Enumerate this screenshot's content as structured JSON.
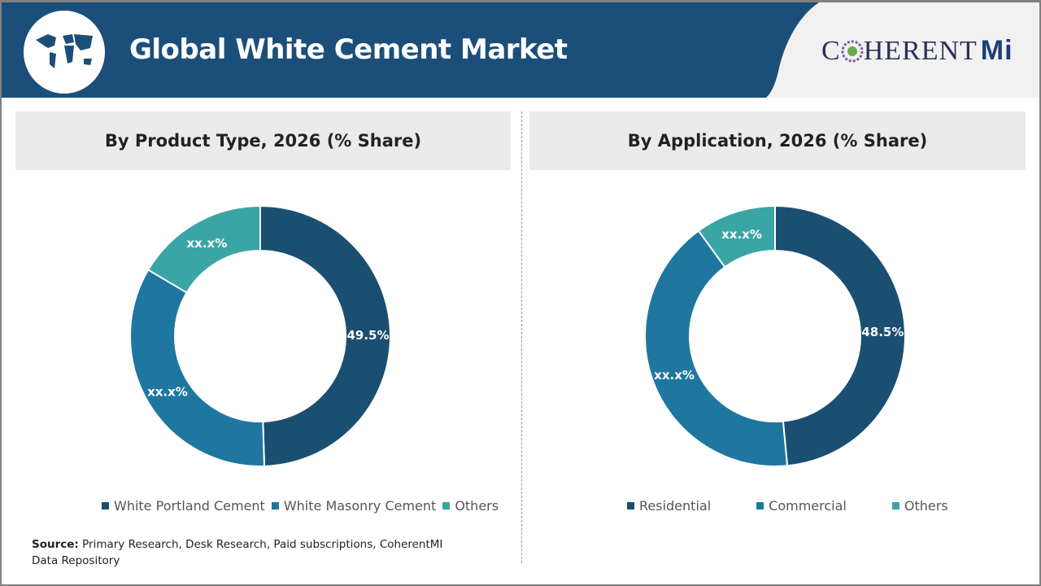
{
  "header": {
    "title": "Global White Cement Market",
    "logo_text": "COHERENTMI",
    "logo_main": "C",
    "logo_rest": "HERENT",
    "logo_mi": "Mi"
  },
  "colors": {
    "header": "#1b4f79",
    "dark": "#1b4f72",
    "medium": "#1f77a0",
    "teal": "#3aa5a5"
  },
  "chart_data": [
    {
      "type": "pie",
      "donut": true,
      "title": "By Product Type, 2026 (% Share)",
      "categories": [
        "White Portland Cement",
        "White Masonry Cement",
        "Others"
      ],
      "values": [
        49.5,
        34.0,
        16.5
      ],
      "labels": [
        "49.5%",
        "xx.x%",
        "xx.x%"
      ],
      "legend": "bottom"
    },
    {
      "type": "pie",
      "donut": true,
      "title": "By Application, 2026 (% Share)",
      "categories": [
        "Residential",
        "Commercial",
        "Others"
      ],
      "values": [
        48.5,
        41.5,
        10.0
      ],
      "labels": [
        "48.5%",
        "xx.x%",
        "xx.x%"
      ],
      "legend": "bottom"
    }
  ],
  "source": {
    "label": "Source:",
    "text": " Primary Research, Desk Research, Paid subscriptions, CoherentMI Data Repository"
  }
}
